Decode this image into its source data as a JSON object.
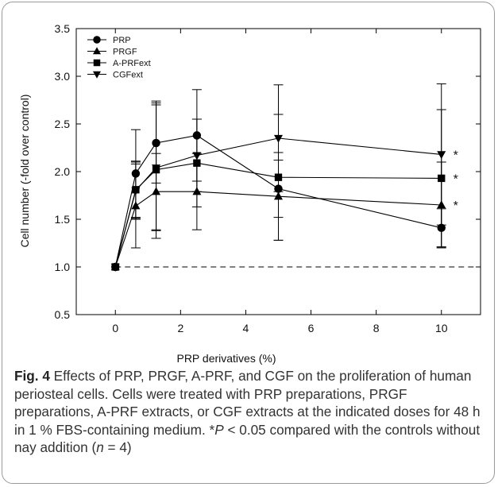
{
  "chart_data": {
    "type": "line",
    "xlabel": "PRP derivatives (%)",
    "ylabel": "Cell number (-fold over control)",
    "xlim": [
      -1.2,
      11.2
    ],
    "ylim": [
      0.5,
      3.5
    ],
    "xticks": [
      "0",
      "2",
      "4",
      "6",
      "8",
      "10"
    ],
    "yticks": [
      "0.5",
      "1.0",
      "1.5",
      "2.0",
      "2.5",
      "3.0",
      "3.5"
    ],
    "x": [
      0,
      0.625,
      1.25,
      2.5,
      5,
      10
    ],
    "reference_line": 1.0,
    "legend_position": "top-left",
    "series": [
      {
        "name": "PRP",
        "marker": "circle",
        "values": [
          1.0,
          1.98,
          2.3,
          2.38,
          1.82,
          1.41
        ],
        "err": [
          0.0,
          0.46,
          0.42,
          0.48,
          0.3,
          0.2
        ],
        "significance": ""
      },
      {
        "name": "PRGF",
        "marker": "triangle-up",
        "values": [
          1.0,
          1.64,
          1.79,
          1.79,
          1.74,
          1.65
        ],
        "err": [
          0.0,
          0.44,
          0.4,
          0.4,
          0.46,
          0.45
        ],
        "significance": "*"
      },
      {
        "name": "A-PRFext",
        "marker": "square",
        "values": [
          1.0,
          1.81,
          2.02,
          2.09,
          1.94,
          1.93
        ],
        "err": [
          0.0,
          0.3,
          0.72,
          0.46,
          0.66,
          0.72
        ],
        "significance": "*"
      },
      {
        "name": "CGFext",
        "marker": "triangle-down",
        "values": [
          1.0,
          1.8,
          2.04,
          2.17,
          2.35,
          2.18
        ],
        "err": [
          0.0,
          0.3,
          0.66,
          0.38,
          0.56,
          0.74
        ],
        "significance": "*"
      }
    ]
  },
  "caption": {
    "label": "Fig. 4",
    "text_1": " Effects of PRP, PRGF, A-PRF, and CGF on the proliferation of human periosteal cells. Cells were treated with PRP preparations, PRGF preparations, A-PRF extracts, or CGF extracts at the indicated doses for 48 h in 1 % FBS-containing medium. *",
    "p_symbol": "P",
    "text_2": " < 0.05 compared with the controls without nay addition (",
    "n_symbol": "n",
    "text_3": " = 4)"
  }
}
